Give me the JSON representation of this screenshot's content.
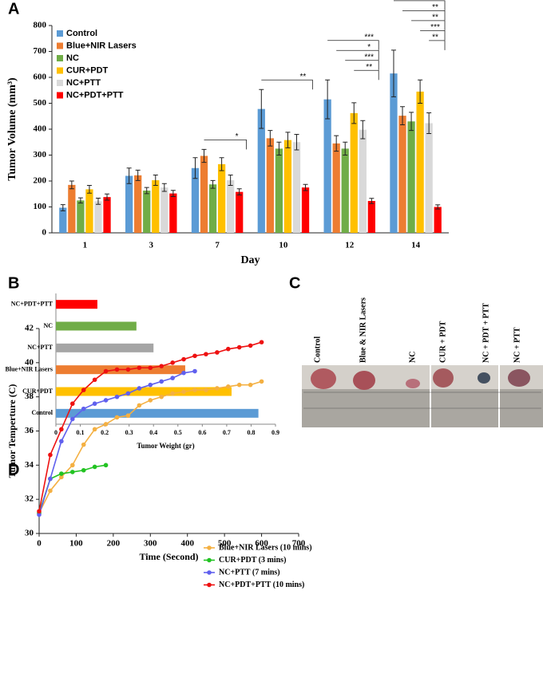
{
  "chart_data": [
    {
      "type": "bar",
      "panel_label": "A",
      "xlabel": "Day",
      "ylabel": "Tumor Volume (mm³)",
      "categories": [
        "1",
        "3",
        "7",
        "10",
        "12",
        "14"
      ],
      "ylim": [
        0,
        800
      ],
      "yticks": [
        0,
        100,
        200,
        300,
        400,
        500,
        600,
        700,
        800
      ],
      "legend": "upper left",
      "series": [
        {
          "name": "Control",
          "color": "#5b9bd5",
          "values": [
            97,
            220,
            250,
            478,
            515,
            615
          ],
          "errors": [
            12,
            30,
            40,
            75,
            75,
            90
          ]
        },
        {
          "name": "Blue+NIR Lasers",
          "color": "#ed7d31",
          "values": [
            185,
            222,
            297,
            365,
            345,
            452
          ],
          "errors": [
            15,
            20,
            25,
            30,
            30,
            35
          ]
        },
        {
          "name": "NC",
          "color": "#70ad47",
          "values": [
            125,
            163,
            187,
            325,
            325,
            430
          ],
          "errors": [
            10,
            12,
            15,
            25,
            25,
            35
          ]
        },
        {
          "name": "CUR+PDT",
          "color": "#ffc000",
          "values": [
            168,
            203,
            265,
            358,
            462,
            545
          ],
          "errors": [
            15,
            20,
            25,
            30,
            40,
            45
          ]
        },
        {
          "name": "NC+PTT",
          "color": "#d9d9d9",
          "values": [
            122,
            175,
            203,
            350,
            398,
            423
          ],
          "errors": [
            12,
            15,
            20,
            30,
            35,
            40
          ]
        },
        {
          "name": "NC+PDT+PTT",
          "color": "#ff0000",
          "values": [
            138,
            152,
            158,
            175,
            123,
            100
          ],
          "errors": [
            12,
            12,
            12,
            12,
            10,
            8
          ]
        }
      ],
      "annotations": [
        {
          "label": "*",
          "category": "7",
          "series": "Blue+NIR Lasers"
        },
        {
          "label": "**",
          "category": "10",
          "series": "Control"
        },
        {
          "label": "***",
          "category": "12",
          "series": "Control"
        },
        {
          "label": "*",
          "category": "12",
          "series": "Blue+NIR Lasers"
        },
        {
          "label": "***",
          "category": "12",
          "series": "NC"
        },
        {
          "label": "**",
          "category": "12",
          "series": "CUR+PDT"
        },
        {
          "label": "***",
          "category": "14",
          "series": "Control"
        },
        {
          "label": "**",
          "category": "14",
          "series": "Blue+NIR Lasers"
        },
        {
          "label": "**",
          "category": "14",
          "series": "NC"
        },
        {
          "label": "***",
          "category": "14",
          "series": "CUR+PDT"
        },
        {
          "label": "**",
          "category": "14",
          "series": "NC+PTT"
        }
      ]
    },
    {
      "type": "barh",
      "panel_label": "B",
      "xlabel": "Tumor Weight (gr)",
      "categories": [
        "NC+PDT+PTT",
        "NC",
        "NC+PTT",
        "Blue+NIR Lasers",
        "CUR+PDT",
        "Control"
      ],
      "values": [
        0.17,
        0.33,
        0.4,
        0.53,
        0.72,
        0.83
      ],
      "colors": [
        "#ff0000",
        "#70ad47",
        "#a5a5a5",
        "#ed7d31",
        "#ffc000",
        "#5b9bd5"
      ],
      "xlim": [
        0,
        0.9
      ],
      "xticks": [
        0,
        0.1,
        0.2,
        0.3,
        0.4,
        0.5,
        0.6,
        0.7,
        0.8,
        0.9
      ]
    },
    {
      "type": "line",
      "panel_label": "D",
      "xlabel": "Time (Second)",
      "ylabel": "Tumor Temperture (C)",
      "xlim": [
        0,
        700
      ],
      "xticks": [
        0,
        100,
        200,
        300,
        400,
        500,
        600,
        700
      ],
      "ylim": [
        30,
        42
      ],
      "yticks": [
        30,
        32,
        34,
        36,
        38,
        40,
        42
      ],
      "legend": "lower right",
      "series": [
        {
          "name": "Blue+NIR Lasers (10 mins)",
          "color": "#f4b042",
          "x": [
            0,
            30,
            60,
            90,
            120,
            150,
            180,
            210,
            240,
            270,
            300,
            330,
            360,
            390,
            420,
            450,
            480,
            510,
            540,
            570,
            600
          ],
          "values": [
            31.2,
            32.5,
            33.3,
            34.0,
            35.2,
            36.1,
            36.4,
            36.8,
            36.9,
            37.5,
            37.8,
            38.0,
            38.2,
            38.3,
            38.4,
            38.4,
            38.5,
            38.6,
            38.7,
            38.7,
            38.9
          ]
        },
        {
          "name": "CUR+PDT (3 mins)",
          "color": "#22c322",
          "x": [
            0,
            30,
            60,
            90,
            120,
            150,
            180
          ],
          "values": [
            31.2,
            33.2,
            33.5,
            33.6,
            33.7,
            33.9,
            34.0
          ]
        },
        {
          "name": "NC+PTT (7 mins)",
          "color": "#6060ee",
          "x": [
            0,
            30,
            60,
            90,
            120,
            150,
            180,
            210,
            240,
            270,
            300,
            330,
            360,
            390,
            420
          ],
          "values": [
            31.1,
            33.2,
            35.4,
            36.7,
            37.3,
            37.6,
            37.8,
            38.0,
            38.2,
            38.5,
            38.7,
            38.9,
            39.1,
            39.4,
            39.5
          ]
        },
        {
          "name": "NC+PDT+PTT (10 mins)",
          "color": "#ee1111",
          "x": [
            0,
            30,
            60,
            90,
            120,
            150,
            180,
            210,
            240,
            270,
            300,
            330,
            360,
            390,
            420,
            450,
            480,
            510,
            540,
            570,
            600
          ],
          "values": [
            31.3,
            34.6,
            36.1,
            37.6,
            38.4,
            39.0,
            39.5,
            39.6,
            39.6,
            39.7,
            39.7,
            39.8,
            40.0,
            40.2,
            40.4,
            40.5,
            40.6,
            40.8,
            40.9,
            41.0,
            41.2
          ]
        }
      ]
    }
  ],
  "photo": {
    "panel_label": "C",
    "labels": [
      "Control",
      "Blue & NIR Lasers",
      "NC",
      "CUR + PDT",
      "NC + PDT + PTT",
      "NC + PTT"
    ]
  }
}
